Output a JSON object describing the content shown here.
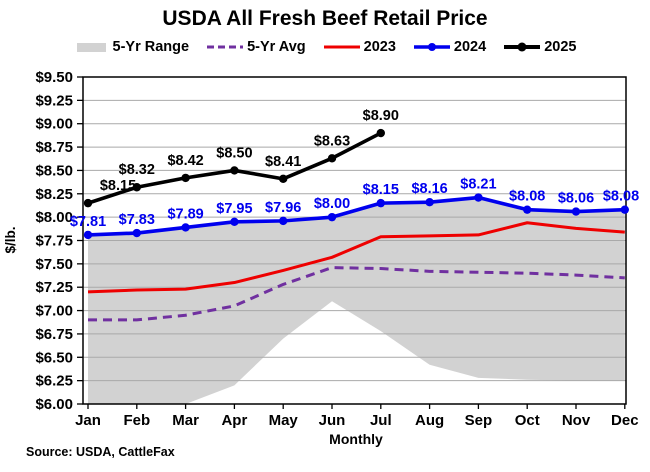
{
  "page": {
    "title": "USDA All Fresh Beef Retail Price",
    "source_note": "Source: USDA, CattleFax"
  },
  "chart_data": {
    "type": "line",
    "title": "USDA All Fresh Beef Retail Price",
    "xlabel": "Monthly",
    "ylabel": "$/lb.",
    "ylim": [
      6.0,
      9.5
    ],
    "ytick_step": 0.25,
    "ytick_labels": [
      "$9.50",
      "$9.25",
      "$9.00",
      "$8.75",
      "$8.50",
      "$8.25",
      "$8.00",
      "$7.75",
      "$7.50",
      "$7.25",
      "$7.00",
      "$6.75",
      "$6.50",
      "$6.25",
      "$6.00"
    ],
    "grid": true,
    "legend_position": "top-center",
    "gridline_color": "#a9a9a9",
    "categories": [
      "Jan",
      "Feb",
      "Mar",
      "Apr",
      "May",
      "Jun",
      "Jul",
      "Aug",
      "Sep",
      "Oct",
      "Nov",
      "Dec"
    ],
    "series": [
      {
        "name": "5-Yr Range",
        "type": "band",
        "color": "#d2d2d2",
        "upper": [
          7.81,
          7.83,
          7.89,
          7.95,
          7.96,
          8.0,
          8.15,
          8.16,
          8.21,
          8.08,
          8.06,
          8.08
        ],
        "lower": [
          6.0,
          6.0,
          6.0,
          6.2,
          6.7,
          7.1,
          6.78,
          6.42,
          6.28,
          6.26,
          6.25,
          6.25
        ]
      },
      {
        "name": "5-Yr Avg",
        "type": "line",
        "dashed": true,
        "color": "#7030a0",
        "values": [
          6.9,
          6.9,
          6.95,
          7.05,
          7.28,
          7.46,
          7.45,
          7.42,
          7.41,
          7.4,
          7.38,
          7.35
        ]
      },
      {
        "name": "2023",
        "type": "line",
        "dashed": false,
        "color": "#ee0000",
        "values": [
          7.2,
          7.22,
          7.23,
          7.3,
          7.43,
          7.57,
          7.79,
          7.8,
          7.81,
          7.94,
          7.88,
          7.84
        ]
      },
      {
        "name": "2024",
        "type": "line",
        "dashed": false,
        "color": "#0000ee",
        "markers": true,
        "values": [
          7.81,
          7.83,
          7.89,
          7.95,
          7.96,
          8.0,
          8.15,
          8.16,
          8.21,
          8.08,
          8.06,
          8.08
        ],
        "data_labels": [
          "$7.81",
          "$7.83",
          "$7.89",
          "$7.95",
          "$7.96",
          "$8.00",
          "$8.15",
          "$8.16",
          "$8.21",
          "$8.08",
          "$8.06",
          "$8.08"
        ]
      },
      {
        "name": "2025",
        "type": "line",
        "dashed": false,
        "color": "#000000",
        "markers": true,
        "values": [
          8.15,
          8.32,
          8.42,
          8.5,
          8.41,
          8.63,
          8.9,
          null,
          null,
          null,
          null,
          null
        ],
        "data_labels": [
          "$8.15",
          "$8.32",
          "$8.42",
          "$8.50",
          "$8.41",
          "$8.63",
          "$8.90"
        ]
      }
    ]
  }
}
